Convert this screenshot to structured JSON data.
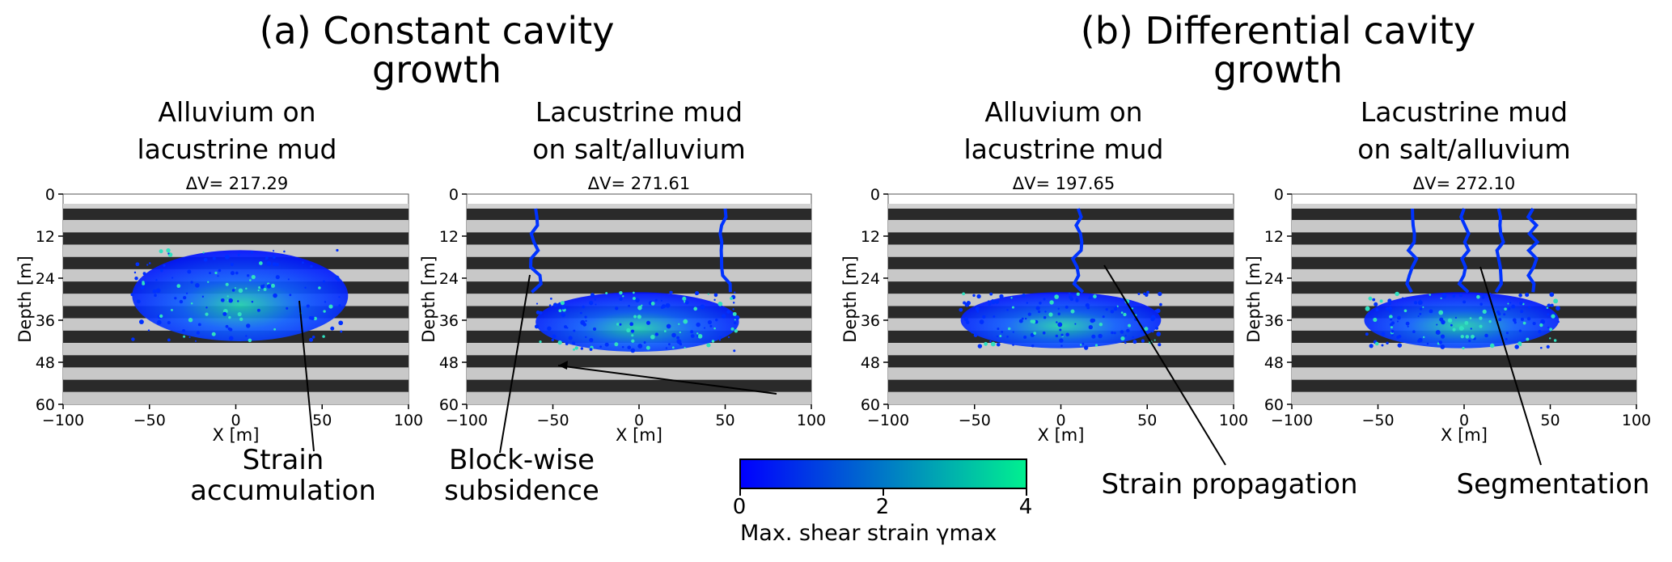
{
  "groups": [
    {
      "title_line1": "(a) Constant cavity",
      "title_line2": "growth"
    },
    {
      "title_line1": "(b) Differential cavity",
      "title_line2": "growth"
    }
  ],
  "panels": [
    {
      "subtitle_line1": "Alluvium on",
      "subtitle_line2": "lacustrine mud",
      "delta_v": "ΔV= 217.29"
    },
    {
      "subtitle_line1": "Lacustrine mud",
      "subtitle_line2": "on salt/alluvium",
      "delta_v": "ΔV= 271.61"
    },
    {
      "subtitle_line1": "Alluvium on",
      "subtitle_line2": "lacustrine mud",
      "delta_v": "ΔV= 197.65"
    },
    {
      "subtitle_line1": "Lacustrine mud",
      "subtitle_line2": "on salt/alluvium",
      "delta_v": "ΔV= 272.10"
    }
  ],
  "annotations": {
    "strain_accumulation_line1": "Strain",
    "strain_accumulation_line2": "accumulation",
    "blockwise_line1": "Block-wise",
    "blockwise_line2": "subsidence",
    "strain_propagation": "Strain propagation",
    "segmentation": "Segmentation"
  },
  "colorbar": {
    "label": "Max. shear strain γmax",
    "ticks": [
      "0",
      "2",
      "4"
    ],
    "range": [
      0,
      4
    ],
    "color_low": "#0000ff",
    "color_high": "#00f090"
  },
  "chart_data": [
    {
      "type": "heatmap",
      "xlabel": "X [m]",
      "ylabel": "Depth [m]",
      "xlim": [
        -100,
        100
      ],
      "ylim": [
        60,
        0
      ],
      "xticks": [
        "−100",
        "−50",
        "0",
        "50",
        "100"
      ],
      "yticks": [
        "0",
        "12",
        "24",
        "36",
        "48",
        "60"
      ],
      "delta_v": 217.29,
      "strain_zone": {
        "x": [
          -60,
          65
        ],
        "depth": [
          16,
          42
        ]
      }
    },
    {
      "type": "heatmap",
      "xlabel": "X [m]",
      "ylabel": "Depth [m]",
      "xlim": [
        -100,
        100
      ],
      "ylim": [
        60,
        0
      ],
      "xticks": [
        "−100",
        "−50",
        "0",
        "50",
        "100"
      ],
      "yticks": [
        "0",
        "12",
        "24",
        "36",
        "48",
        "60"
      ],
      "delta_v": 271.61,
      "strain_zone": {
        "x": [
          -60,
          58
        ],
        "depth": [
          2,
          45
        ]
      }
    },
    {
      "type": "heatmap",
      "xlabel": "X [m]",
      "ylabel": "Depth [m]",
      "xlim": [
        -100,
        100
      ],
      "ylim": [
        60,
        0
      ],
      "xticks": [
        "−100",
        "−50",
        "0",
        "50",
        "100"
      ],
      "yticks": [
        "0",
        "12",
        "24",
        "36",
        "48",
        "60"
      ],
      "delta_v": 197.65,
      "strain_zone": {
        "x": [
          -58,
          58
        ],
        "depth": [
          2,
          44
        ]
      }
    },
    {
      "type": "heatmap",
      "xlabel": "X [m]",
      "ylabel": "Depth [m]",
      "xlim": [
        -100,
        100
      ],
      "ylim": [
        60,
        0
      ],
      "xticks": [
        "−100",
        "−50",
        "0",
        "50",
        "100"
      ],
      "yticks": [
        "0",
        "12",
        "24",
        "36",
        "48",
        "60"
      ],
      "delta_v": 272.1,
      "strain_zone": {
        "x": [
          -58,
          55
        ],
        "depth": [
          2,
          44
        ]
      }
    }
  ]
}
